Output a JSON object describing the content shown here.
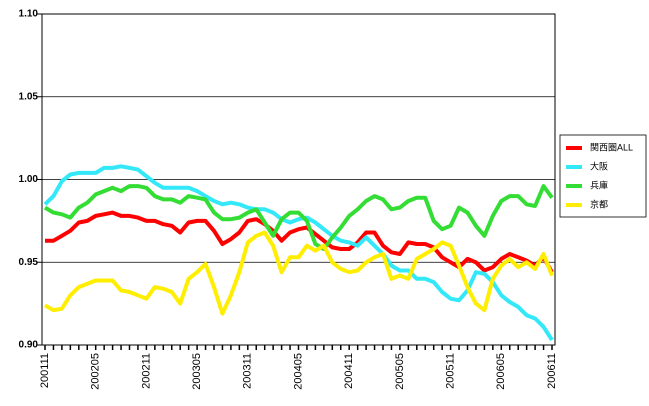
{
  "chart_data": {
    "type": "line",
    "categories": [
      "200111",
      null,
      null,
      null,
      null,
      null,
      "200205",
      null,
      null,
      null,
      null,
      null,
      "200211",
      null,
      null,
      null,
      null,
      null,
      "200305",
      null,
      null,
      null,
      null,
      null,
      "200311",
      null,
      null,
      null,
      null,
      null,
      "200405",
      null,
      null,
      null,
      null,
      null,
      "200411",
      null,
      null,
      null,
      null,
      null,
      "200505",
      null,
      null,
      null,
      null,
      null,
      "200511",
      null,
      null,
      null,
      null,
      null,
      "200605",
      null,
      null,
      null,
      null,
      null,
      "200611"
    ],
    "series": [
      {
        "name": "関西圏ALL",
        "color": "#ff0000",
        "values": [
          0.963,
          0.963,
          0.966,
          0.969,
          0.974,
          0.975,
          0.978,
          0.979,
          0.98,
          0.978,
          0.978,
          0.977,
          0.975,
          0.975,
          0.973,
          0.972,
          0.968,
          0.974,
          0.975,
          0.975,
          0.969,
          0.961,
          0.964,
          0.968,
          0.975,
          0.976,
          0.973,
          0.969,
          0.963,
          0.968,
          0.97,
          0.971,
          0.967,
          0.963,
          0.959,
          0.958,
          0.958,
          0.962,
          0.968,
          0.968,
          0.96,
          0.956,
          0.955,
          0.962,
          0.961,
          0.961,
          0.959,
          0.953,
          0.95,
          0.947,
          0.952,
          0.95,
          0.945,
          0.947,
          0.952,
          0.955,
          0.953,
          0.951,
          0.948,
          0.953,
          0.944
        ]
      },
      {
        "name": "大阪",
        "color": "#33e8f8",
        "values": [
          0.985,
          0.99,
          0.999,
          1.003,
          1.004,
          1.004,
          1.004,
          1.007,
          1.007,
          1.008,
          1.007,
          1.006,
          1.002,
          0.998,
          0.995,
          0.995,
          0.995,
          0.995,
          0.993,
          0.99,
          0.987,
          0.985,
          0.986,
          0.985,
          0.983,
          0.982,
          0.982,
          0.98,
          0.976,
          0.974,
          0.976,
          0.977,
          0.974,
          0.97,
          0.966,
          0.963,
          0.962,
          0.96,
          0.965,
          0.96,
          0.955,
          0.948,
          0.945,
          0.945,
          0.94,
          0.94,
          0.938,
          0.932,
          0.928,
          0.927,
          0.933,
          0.944,
          0.943,
          0.938,
          0.93,
          0.926,
          0.923,
          0.918,
          0.916,
          0.911,
          0.903
        ]
      },
      {
        "name": "兵庫",
        "color": "#33dd33",
        "values": [
          0.983,
          0.98,
          0.979,
          0.977,
          0.983,
          0.986,
          0.991,
          0.993,
          0.995,
          0.993,
          0.996,
          0.996,
          0.995,
          0.99,
          0.988,
          0.988,
          0.986,
          0.99,
          0.989,
          0.988,
          0.98,
          0.976,
          0.976,
          0.977,
          0.98,
          0.982,
          0.974,
          0.966,
          0.976,
          0.98,
          0.98,
          0.975,
          0.961,
          0.958,
          0.965,
          0.971,
          0.978,
          0.982,
          0.987,
          0.99,
          0.988,
          0.982,
          0.983,
          0.987,
          0.989,
          0.989,
          0.975,
          0.97,
          0.972,
          0.983,
          0.98,
          0.972,
          0.966,
          0.978,
          0.987,
          0.99,
          0.99,
          0.985,
          0.984,
          0.996,
          0.989
        ]
      },
      {
        "name": "京都",
        "color": "#ffee00",
        "values": [
          0.924,
          0.921,
          0.922,
          0.93,
          0.935,
          0.937,
          0.939,
          0.939,
          0.939,
          0.933,
          0.932,
          0.93,
          0.928,
          0.935,
          0.934,
          0.932,
          0.925,
          0.94,
          0.944,
          0.949,
          0.935,
          0.919,
          0.93,
          0.944,
          0.962,
          0.966,
          0.968,
          0.96,
          0.944,
          0.953,
          0.953,
          0.96,
          0.957,
          0.96,
          0.95,
          0.946,
          0.944,
          0.945,
          0.95,
          0.953,
          0.955,
          0.94,
          0.942,
          0.94,
          0.952,
          0.955,
          0.958,
          0.962,
          0.96,
          0.948,
          0.935,
          0.925,
          0.921,
          0.94,
          0.948,
          0.952,
          0.947,
          0.95,
          0.946,
          0.955,
          0.942
        ]
      }
    ],
    "ylim": [
      0.9,
      1.1
    ],
    "yticks": [
      {
        "value": 0.9,
        "label": "0.90"
      },
      {
        "value": 0.95,
        "label": "0.95"
      },
      {
        "value": 1.0,
        "label": "1.00"
      },
      {
        "value": 1.05,
        "label": "1.05"
      },
      {
        "value": 1.1,
        "label": "1.10"
      }
    ],
    "grid": true,
    "legend": "right"
  }
}
